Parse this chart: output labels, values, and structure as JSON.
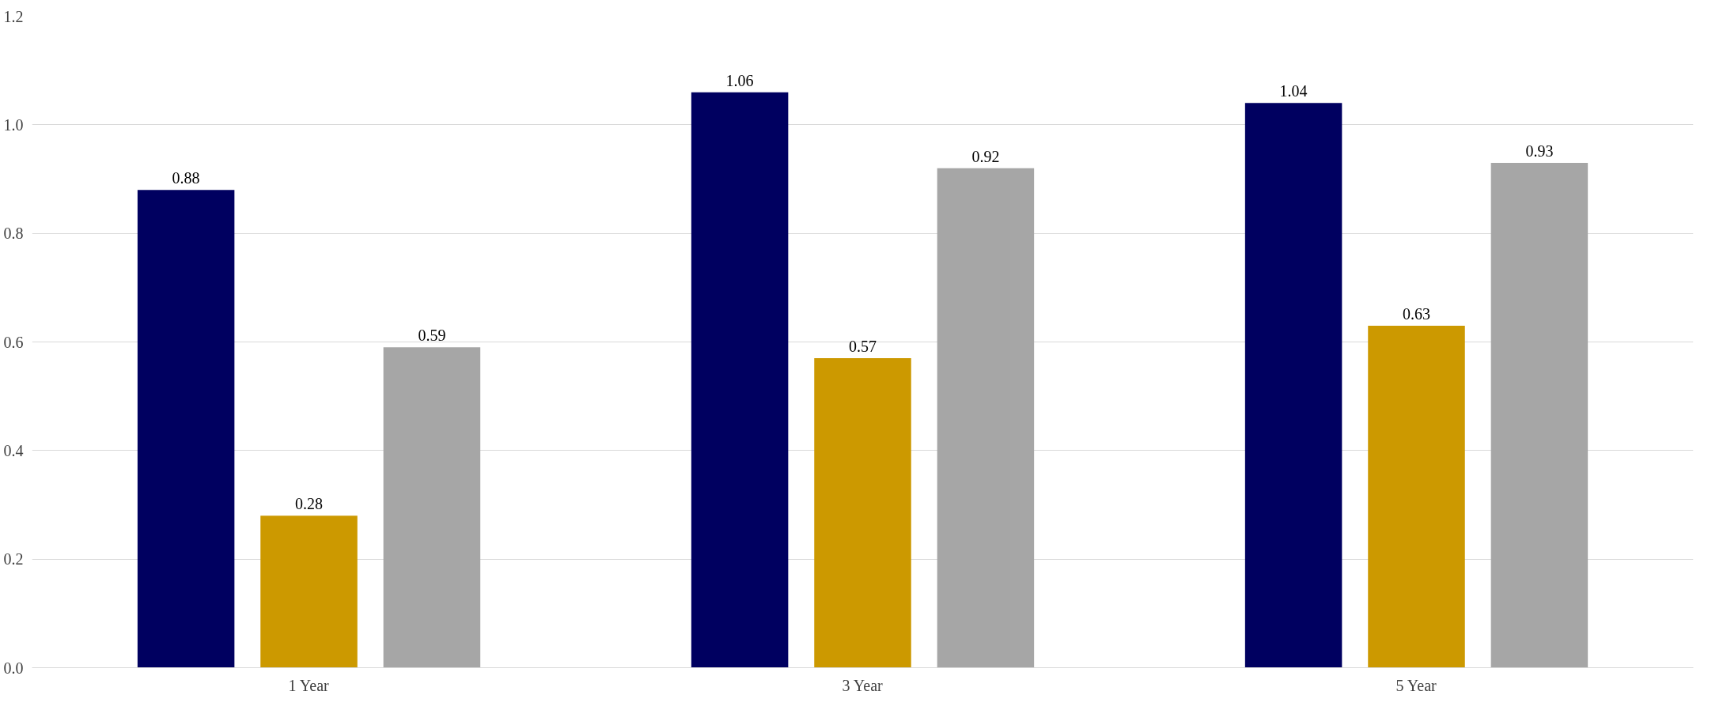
{
  "chart_data": {
    "type": "bar",
    "categories": [
      "1 Year",
      "3 Year",
      "5 Year"
    ],
    "series": [
      {
        "color": "#000060",
        "values": [
          0.88,
          1.06,
          1.04
        ]
      },
      {
        "color": "#cc9900",
        "values": [
          0.28,
          0.57,
          0.63
        ]
      },
      {
        "color": "#a6a6a6",
        "values": [
          0.59,
          0.92,
          0.93
        ]
      }
    ],
    "ylim": [
      0,
      1.2
    ],
    "yticks": [
      {
        "value": 0,
        "label": "0.0"
      },
      {
        "value": 0.2,
        "label": "0.2"
      },
      {
        "value": 0.4,
        "label": "0.4"
      },
      {
        "value": 0.6,
        "label": "0.6"
      },
      {
        "value": 0.8,
        "label": "0.8"
      },
      {
        "value": 1.0,
        "label": "1.0"
      },
      {
        "value": 1.2,
        "label": "1.2"
      }
    ],
    "grid": "y",
    "data_labels": true
  }
}
